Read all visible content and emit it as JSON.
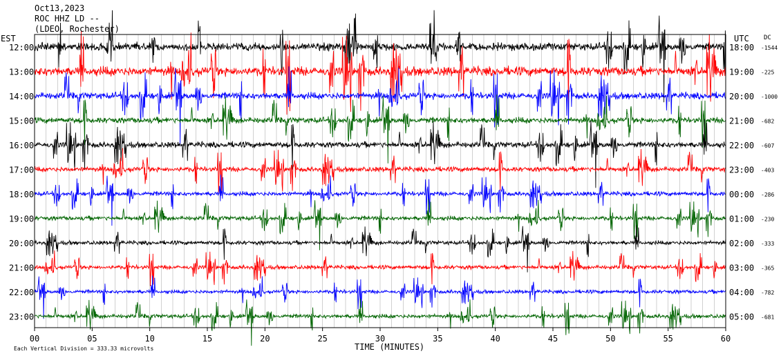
{
  "header": {
    "date": "Oct13,2023",
    "station": "ROC HHZ LD --",
    "network": "(LDEO, Rochester)"
  },
  "left_axis_label": "EST",
  "right_axis_label": "UTC",
  "dc_label": "DC",
  "x_axis_title": "TIME (MINUTES)",
  "footer_note": "Each Vertical Division = 333.33 microvolts",
  "colors": {
    "black": "#000000",
    "red": "#ff0000",
    "blue": "#0000ff",
    "green": "#006400",
    "grid": "#b0b0b0"
  },
  "chart_data": {
    "type": "line",
    "title": "Oct13,2023",
    "xlabel": "TIME (MINUTES)",
    "ylabel": "EST",
    "xlim": [
      0,
      60
    ],
    "x_ticks": [
      0,
      5,
      10,
      15,
      20,
      25,
      30,
      35,
      40,
      45,
      50,
      55,
      60
    ],
    "x_tick_labels": [
      "00",
      "05",
      "10",
      "15",
      "20",
      "25",
      "30",
      "35",
      "40",
      "45",
      "50",
      "55",
      "60"
    ],
    "grid": true,
    "rows": [
      {
        "est": "12:00",
        "utc": "18:00",
        "dc": "-1544",
        "color": "black",
        "amplitude": 4.5
      },
      {
        "est": "13:00",
        "utc": "19:00",
        "dc": "-225",
        "color": "red",
        "amplitude": 5.5
      },
      {
        "est": "14:00",
        "utc": "20:00",
        "dc": "-1000",
        "color": "blue",
        "amplitude": 4.0
      },
      {
        "est": "15:00",
        "utc": "21:00",
        "dc": "-682",
        "color": "green",
        "amplitude": 3.5
      },
      {
        "est": "16:00",
        "utc": "22:00",
        "dc": "-607",
        "color": "black",
        "amplitude": 3.5
      },
      {
        "est": "17:00",
        "utc": "23:00",
        "dc": "-403",
        "color": "red",
        "amplitude": 3.0
      },
      {
        "est": "18:00",
        "utc": "00:00",
        "dc": "-286",
        "color": "blue",
        "amplitude": 2.6
      },
      {
        "est": "19:00",
        "utc": "01:00",
        "dc": "-230",
        "color": "green",
        "amplitude": 2.6
      },
      {
        "est": "20:00",
        "utc": "02:00",
        "dc": "-333",
        "color": "black",
        "amplitude": 2.4
      },
      {
        "est": "21:00",
        "utc": "03:00",
        "dc": "-365",
        "color": "red",
        "amplitude": 2.4
      },
      {
        "est": "22:00",
        "utc": "04:00",
        "dc": "-782",
        "color": "blue",
        "amplitude": 2.2
      },
      {
        "est": "23:00",
        "utc": "05:00",
        "dc": "-681",
        "color": "green",
        "amplitude": 2.4
      }
    ]
  }
}
